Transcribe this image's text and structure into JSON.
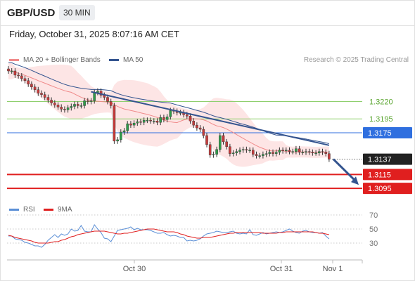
{
  "header": {
    "symbol": "GBP/USD",
    "timeframe": "30 MIN",
    "datetime": "Friday, October 31, 2025 8:07:16 AM CET"
  },
  "legend": {
    "ma20_label": "MA 20 + Bollinger Bands",
    "ma50_label": "MA 50",
    "credit": "Research © 2025 Trading Central",
    "rsi_label": "RSI",
    "rsi_ma_label": "9MA"
  },
  "colors": {
    "ma20": "#f08a8a",
    "bollinger_fill": "#fde0e0",
    "ma50": "#34548f",
    "candle": "#333333",
    "support": "#e01f1f",
    "resistance": "#8fcf6e",
    "pivot": "#2f6fdf",
    "trendline": "#34548f",
    "rsi": "#5b8fd6",
    "rsi_ma": "#e01f1f"
  },
  "chart_data": [
    {
      "type": "candlestick",
      "title": "",
      "xlabel": "",
      "ylabel": "",
      "x_ticks": [
        "Oct 30",
        "Oct 31",
        "Nov 1"
      ],
      "y_range": [
        1.3085,
        1.3265
      ],
      "current_price": 1.3137,
      "levels": [
        {
          "label": "1.3220",
          "value": 1.322,
          "kind": "resistance"
        },
        {
          "label": "1.3195",
          "value": 1.3195,
          "kind": "resistance"
        },
        {
          "label": "1.3175",
          "value": 1.3175,
          "kind": "pivot"
        },
        {
          "label": "1.3137",
          "value": 1.3137,
          "kind": "current"
        },
        {
          "label": "1.3115",
          "value": 1.3115,
          "kind": "support"
        },
        {
          "label": "1.3095",
          "value": 1.3095,
          "kind": "support"
        }
      ],
      "close": [
        1.3264,
        1.3264,
        1.3258,
        1.3257,
        1.3253,
        1.325,
        1.3245,
        1.3241,
        1.3237,
        1.3232,
        1.323,
        1.3226,
        1.3222,
        1.3218,
        1.3215,
        1.3212,
        1.3209,
        1.3208,
        1.3211,
        1.3213,
        1.3216,
        1.3214,
        1.3214,
        1.3221,
        1.322,
        1.3221,
        1.3233,
        1.3235,
        1.3229,
        1.3226,
        1.322,
        1.3214,
        1.3163,
        1.3165,
        1.3176,
        1.3178,
        1.3188,
        1.3186,
        1.3189,
        1.3191,
        1.319,
        1.3193,
        1.3193,
        1.3192,
        1.3192,
        1.319,
        1.3197,
        1.3194,
        1.3198,
        1.3207,
        1.3206,
        1.3204,
        1.3204,
        1.3201,
        1.3199,
        1.3192,
        1.3186,
        1.3182,
        1.318,
        1.3171,
        1.3158,
        1.3143,
        1.3144,
        1.3151,
        1.3171,
        1.3162,
        1.3155,
        1.3145,
        1.3146,
        1.3148,
        1.315,
        1.3151,
        1.315,
        1.315,
        1.3144,
        1.3142,
        1.3142,
        1.3144,
        1.3145,
        1.3147,
        1.3145,
        1.3147,
        1.315,
        1.3149,
        1.315,
        1.3148,
        1.3148,
        1.3152,
        1.3147,
        1.3147,
        1.3148,
        1.3147,
        1.3146,
        1.3146,
        1.3148,
        1.3147,
        1.3145,
        1.3137
      ]
    },
    {
      "type": "line",
      "title": "",
      "xlabel": "",
      "ylabel": "",
      "y_ticks": [
        30,
        50,
        70
      ],
      "y_range": [
        20,
        80
      ],
      "series": [
        {
          "name": "RSI",
          "values": [
            40,
            40,
            36,
            35,
            34,
            31,
            30,
            28,
            26,
            26,
            24,
            28,
            34,
            38,
            42,
            38,
            43,
            41,
            43,
            50,
            47,
            48,
            55,
            47,
            46,
            46,
            56,
            50,
            45,
            37,
            36,
            32,
            40,
            48,
            49,
            50,
            51,
            53,
            49,
            51,
            49,
            49,
            49,
            48,
            46,
            44,
            44,
            45,
            42,
            40,
            41,
            40,
            38,
            38,
            33,
            34,
            33,
            34,
            36,
            40,
            43,
            44,
            45,
            47,
            46,
            45,
            45,
            46,
            47,
            44,
            43,
            44,
            43,
            49,
            42,
            41,
            43,
            45,
            43,
            44,
            45,
            46,
            45,
            46,
            48,
            50,
            47,
            45,
            44,
            47,
            48,
            46,
            45,
            45,
            44,
            45,
            40,
            36
          ]
        },
        {
          "name": "9MA",
          "values": [
            41,
            40,
            38,
            37,
            36,
            35,
            34,
            33,
            31,
            30,
            30,
            30,
            30,
            31,
            32,
            32,
            34,
            35,
            37,
            39,
            40,
            42,
            43,
            44,
            45,
            46,
            47,
            47,
            47,
            47,
            46,
            45,
            44,
            43,
            43,
            44,
            44,
            45,
            46,
            47,
            48,
            49,
            50,
            50,
            50,
            49,
            48,
            47,
            46,
            46,
            46,
            45,
            43,
            42,
            40,
            39,
            38,
            37,
            37,
            38,
            38,
            38,
            39,
            40,
            41,
            42,
            43,
            44,
            44,
            45,
            45,
            45,
            45,
            45,
            45,
            45,
            45,
            44,
            44,
            44,
            44,
            44,
            45,
            45,
            46,
            46,
            46,
            46,
            46,
            46,
            46,
            46,
            46,
            45,
            44,
            44,
            43,
            42
          ]
        }
      ]
    }
  ]
}
